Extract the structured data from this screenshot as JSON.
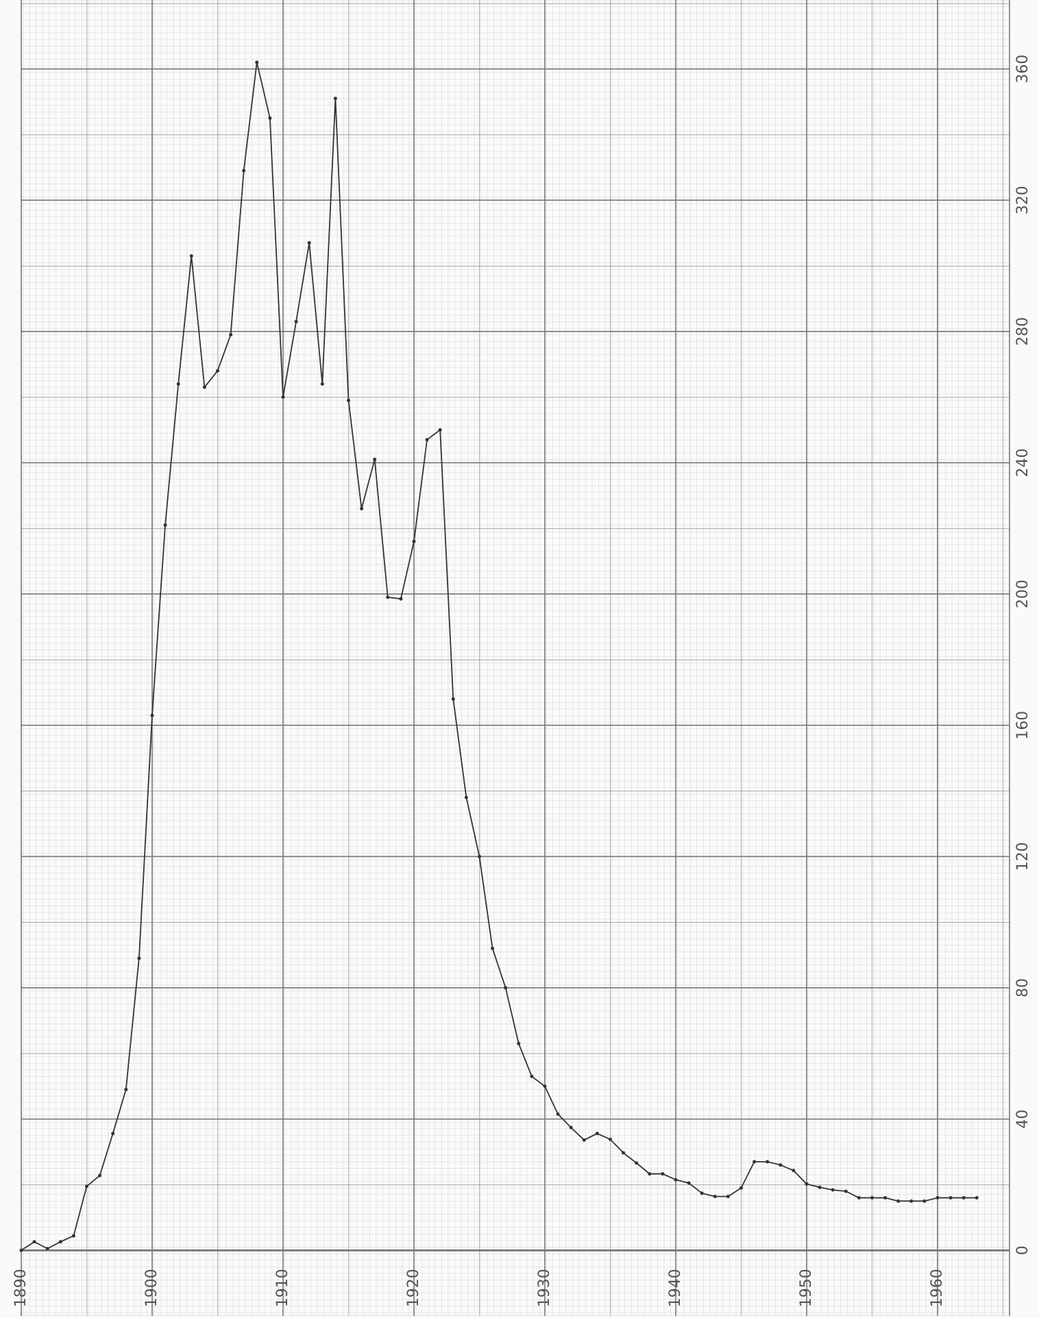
{
  "chart_data": {
    "type": "line",
    "x": [
      1890,
      1891,
      1892,
      1893,
      1894,
      1895,
      1896,
      1897,
      1898,
      1899,
      1900,
      1901,
      1902,
      1903,
      1904,
      1905,
      1906,
      1907,
      1908,
      1909,
      1910,
      1911,
      1912,
      1913,
      1914,
      1915,
      1916,
      1917,
      1918,
      1919,
      1920,
      1921,
      1922,
      1923,
      1924,
      1925,
      1926,
      1927,
      1928,
      1929,
      1930,
      1931,
      1932,
      1933,
      1934,
      1935,
      1936,
      1937,
      1938,
      1939,
      1940,
      1941,
      1942,
      1943,
      1944,
      1945,
      1946,
      1947,
      1948,
      1949,
      1950,
      1951,
      1952,
      1953,
      1954,
      1955,
      1956,
      1957,
      1958,
      1959,
      1960,
      1961,
      1962,
      1963
    ],
    "values": [
      0,
      2.6,
      0.5,
      2.6,
      4.4,
      19.5,
      22.8,
      35.6,
      49,
      89,
      163,
      221,
      264,
      303,
      263,
      268,
      279,
      329,
      362,
      345,
      260,
      283,
      307,
      264,
      351,
      259,
      226,
      241,
      199,
      198.5,
      216,
      247,
      250,
      168,
      138,
      120,
      92,
      80,
      63,
      53,
      50,
      41.5,
      37.4,
      33.6,
      35.6,
      33.8,
      29.7,
      26.6,
      23.3,
      23.3,
      21.5,
      20.5,
      17.4,
      16.4,
      16.4,
      19,
      27,
      27,
      26,
      24.3,
      20.2,
      19.2,
      18.4,
      18,
      16,
      16,
      16,
      15,
      15,
      15,
      16,
      16,
      16,
      16
    ],
    "color": "#333333",
    "xlim": [
      1890,
      1965.5
    ],
    "xticks": [
      1890,
      1900,
      1910,
      1920,
      1930,
      1940,
      1950,
      1960
    ],
    "ylim": [
      -20,
      381
    ],
    "yticks": [
      0,
      40,
      80,
      120,
      160,
      200,
      240,
      280,
      320,
      360
    ]
  }
}
